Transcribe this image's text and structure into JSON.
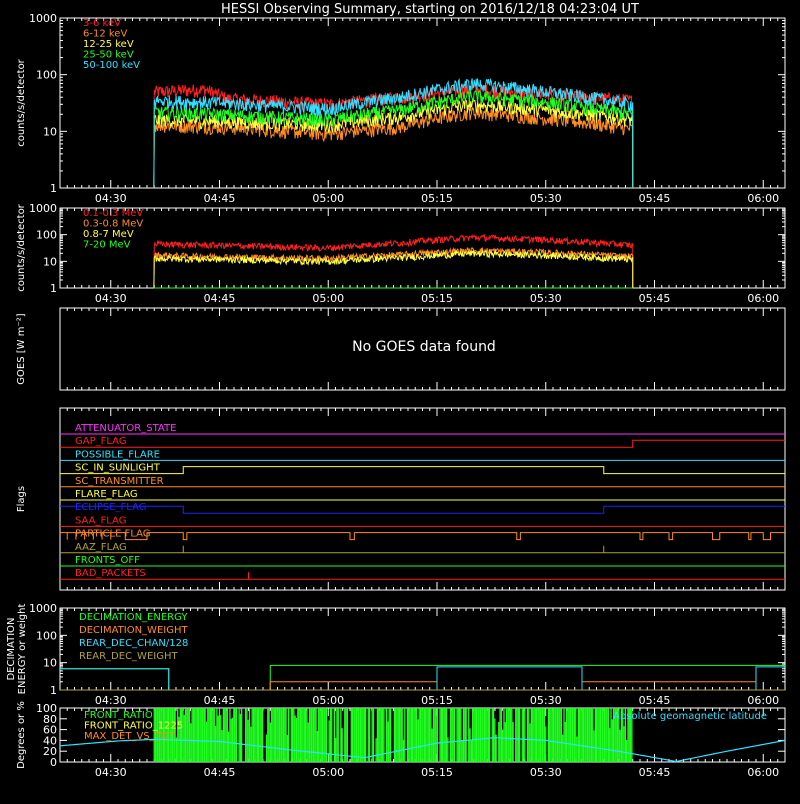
{
  "title": "HESSI Observing Summary, starting on 2016/12/18 04:23:04 UT",
  "colors": {
    "background": "#000000",
    "axes": "#ffffff",
    "red": "#ff2020",
    "orange": "#ff8c20",
    "yellow": "#ffff40",
    "green": "#20ff20",
    "cyan": "#30e0ff",
    "magenta": "#ff30ff",
    "blue": "#2020ff",
    "olive": "#b0a040"
  },
  "time_axis": {
    "tick_labels": [
      "04:30",
      "04:45",
      "05:00",
      "05:15",
      "05:30",
      "05:45",
      "06:00"
    ],
    "xlim_minutes_after_0423": [
      0,
      100
    ]
  },
  "no_goes_text": "No GOES data found",
  "chart_data": [
    {
      "type": "line",
      "panel": "lo_energy",
      "ylabel": "counts/s/detector",
      "yscale": "log",
      "ylim": [
        1,
        1000
      ],
      "ytick_labels": [
        "1",
        "10",
        "100",
        "1000"
      ],
      "data_start": "04:36",
      "data_end": "05:42",
      "series": [
        {
          "name": "3-6 keV",
          "color": "#ff2020",
          "x": [
            "04:36",
            "04:43",
            "04:46",
            "05:00",
            "05:10",
            "05:20",
            "05:30",
            "05:42"
          ],
          "y": [
            50,
            55,
            38,
            30,
            40,
            55,
            45,
            35
          ]
        },
        {
          "name": "6-12 keV",
          "color": "#ff8c20",
          "x": [
            "04:36",
            "04:45",
            "05:00",
            "05:10",
            "05:20",
            "05:30",
            "05:42"
          ],
          "y": [
            13,
            12,
            9,
            12,
            22,
            17,
            11
          ]
        },
        {
          "name": "12-25 keV",
          "color": "#ffff40",
          "x": [
            "04:36",
            "04:45",
            "05:00",
            "05:10",
            "05:20",
            "05:30",
            "05:42"
          ],
          "y": [
            16,
            15,
            13,
            18,
            30,
            24,
            16
          ]
        },
        {
          "name": "25-50 keV",
          "color": "#20ff20",
          "x": [
            "04:36",
            "04:45",
            "05:00",
            "05:10",
            "05:20",
            "05:30",
            "05:42"
          ],
          "y": [
            22,
            20,
            16,
            24,
            42,
            33,
            20
          ]
        },
        {
          "name": "50-100 keV",
          "color": "#30e0ff",
          "x": [
            "04:36",
            "04:45",
            "05:00",
            "05:10",
            "05:20",
            "05:30",
            "05:42"
          ],
          "y": [
            35,
            32,
            25,
            40,
            70,
            50,
            30
          ]
        }
      ]
    },
    {
      "type": "line",
      "panel": "hi_energy",
      "ylabel": "counts/s/detector",
      "yscale": "log",
      "ylim": [
        1,
        1000
      ],
      "ytick_labels": [
        "1",
        "10",
        "100",
        "1000"
      ],
      "data_start": "04:36",
      "data_end": "05:42",
      "series": [
        {
          "name": "0.1-0.3 MeV",
          "color": "#ff2020",
          "x": [
            "04:36",
            "04:45",
            "05:00",
            "05:10",
            "05:20",
            "05:30",
            "05:42"
          ],
          "y": [
            45,
            40,
            32,
            50,
            80,
            65,
            40
          ]
        },
        {
          "name": "0.3-0.8 MeV",
          "color": "#ff8c20",
          "x": [
            "04:36",
            "04:45",
            "05:00",
            "05:10",
            "05:20",
            "05:30",
            "05:42"
          ],
          "y": [
            17,
            15,
            13,
            18,
            26,
            22,
            15
          ]
        },
        {
          "name": "0.8-7 MeV",
          "color": "#ffff40",
          "x": [
            "04:36",
            "04:45",
            "05:00",
            "05:10",
            "05:20",
            "05:30",
            "05:42"
          ],
          "y": [
            13,
            12,
            10,
            14,
            20,
            17,
            12
          ]
        },
        {
          "name": "7-20 MeV",
          "color": "#20ff20",
          "x": [
            "04:36",
            "05:42"
          ],
          "y": [
            1,
            1
          ]
        }
      ]
    },
    {
      "type": "line",
      "panel": "goes",
      "ylabel": "GOES [W m⁻²]",
      "series": []
    },
    {
      "type": "line",
      "panel": "flags",
      "ylabel": "Flags",
      "series": [
        {
          "name": "ATTENUATOR_STATE",
          "color": "#ff30ff",
          "x": [
            "04:23",
            "06:03"
          ],
          "y": [
            0,
            0
          ]
        },
        {
          "name": "GAP_FLAG",
          "color": "#ff2020",
          "x": [
            "04:23",
            "05:42",
            "05:42",
            "06:03"
          ],
          "y": [
            0,
            0,
            1,
            1
          ]
        },
        {
          "name": "POSSIBLE_FLARE",
          "color": "#30e0ff",
          "x": [
            "04:23",
            "06:03"
          ],
          "y": [
            0,
            0
          ]
        },
        {
          "name": "SC_IN_SUNLIGHT",
          "color": "#ffff40",
          "x": [
            "04:23",
            "04:40",
            "04:40",
            "05:38",
            "05:38",
            "06:03"
          ],
          "y": [
            0,
            0,
            1,
            1,
            0,
            0
          ]
        },
        {
          "name": "SC_TRANSMITTER",
          "color": "#ff8c20",
          "x": [
            "04:23",
            "06:03"
          ],
          "y": [
            0,
            0
          ]
        },
        {
          "name": "FLARE_FLAG",
          "color": "#ffff40",
          "x": [
            "04:23",
            "06:03"
          ],
          "y": [
            0,
            0
          ]
        },
        {
          "name": "ECLIPSE_FLAG",
          "color": "#2020ff",
          "x": [
            "04:23",
            "04:40",
            "04:40",
            "05:38",
            "05:38",
            "06:03"
          ],
          "y": [
            1,
            1,
            0,
            0,
            1,
            1
          ]
        },
        {
          "name": "SAA_FLAG",
          "color": "#ff2020",
          "x": [
            "04:23",
            "06:03"
          ],
          "y": [
            0,
            0
          ]
        },
        {
          "name": "PARTICLE FLAG",
          "color": "#ff8c20",
          "x": [
            "04:23",
            "06:03"
          ],
          "y": [
            1,
            1
          ]
        },
        {
          "name": "AAZ_FLAG",
          "color": "#b0a040",
          "x": [
            "04:23",
            "04:40",
            "04:40",
            "04:40",
            "05:38",
            "05:38",
            "05:38",
            "06:03"
          ],
          "y": [
            0,
            0,
            1,
            0,
            0,
            1,
            0,
            0
          ]
        },
        {
          "name": "FRONTS_OFF",
          "color": "#20ff20",
          "x": [
            "04:23",
            "06:03"
          ],
          "y": [
            0,
            0
          ]
        },
        {
          "name": "BAD_PACKETS",
          "color": "#ff2020",
          "x": [
            "04:23",
            "04:49",
            "04:49",
            "04:49",
            "06:03"
          ],
          "y": [
            0,
            0,
            1,
            0,
            0
          ]
        }
      ]
    },
    {
      "type": "line",
      "panel": "decimation",
      "ylabel": "DECIMATION ENERGY or weight",
      "yscale": "log",
      "ylim": [
        1,
        1000
      ],
      "ytick_labels": [
        "1",
        "10",
        "100",
        "1000"
      ],
      "series": [
        {
          "name": "DECIMATION_ENERGY",
          "color": "#20ff20",
          "x": [
            "04:23",
            "04:38",
            "04:38",
            "04:52",
            "04:52",
            "05:15",
            "05:15",
            "05:35",
            "05:35",
            "05:59",
            "05:59",
            "06:03"
          ],
          "y": [
            6,
            6,
            1,
            1,
            8,
            8,
            8,
            8,
            8,
            8,
            8,
            8
          ]
        },
        {
          "name": "DECIMATION_WEIGHT",
          "color": "#ff8c20",
          "x": [
            "04:23",
            "04:52",
            "04:52",
            "05:15",
            "05:15",
            "05:35",
            "05:35",
            "05:59",
            "05:59",
            "06:03"
          ],
          "y": [
            1,
            1,
            2,
            2,
            1,
            1,
            2,
            2,
            1,
            1
          ]
        },
        {
          "name": "REAR_DEC_CHAN/128",
          "color": "#30e0ff",
          "x": [
            "04:23",
            "04:38",
            "04:38",
            "05:15",
            "05:15",
            "05:35",
            "05:35",
            "05:59",
            "05:59",
            "06:03"
          ],
          "y": [
            6,
            6,
            1,
            1,
            7,
            7,
            1,
            1,
            7,
            7
          ]
        },
        {
          "name": "REAR_DEC_WEIGHT",
          "color": "#b0a040",
          "x": [
            "04:23",
            "06:03"
          ],
          "y": [
            1,
            1
          ]
        }
      ]
    },
    {
      "type": "line",
      "panel": "ratio",
      "ylabel": "Degrees or %",
      "ylim": [
        0,
        100
      ],
      "ytick_labels": [
        "0",
        "20",
        "40",
        "60",
        "80",
        "100"
      ],
      "annotation": "Absolute geomagnetic latitude",
      "series": [
        {
          "name": "FRONT_RATIO",
          "color": "#20ff20",
          "x": [
            "04:36",
            "05:42"
          ],
          "y": [
            100,
            100
          ]
        },
        {
          "name": "FRONT_RATIO_1225",
          "color": "#ffff40",
          "x": [
            "04:36",
            "05:42"
          ],
          "y": [
            0,
            0
          ]
        },
        {
          "name": "MAX_DET_VS_TOT",
          "color": "#ff8c20",
          "x": [
            "04:36",
            "05:42"
          ],
          "y": [
            0,
            0
          ]
        },
        {
          "name": "Absolute geomagnetic latitude",
          "color": "#30e0ff",
          "x": [
            "04:23",
            "04:31",
            "04:36",
            "04:45",
            "04:55",
            "05:05",
            "05:15",
            "05:23",
            "05:30",
            "05:40",
            "05:48",
            "05:55",
            "06:03"
          ],
          "y": [
            30,
            39,
            42,
            38,
            22,
            8,
            35,
            45,
            40,
            20,
            1,
            20,
            40
          ]
        }
      ]
    }
  ]
}
